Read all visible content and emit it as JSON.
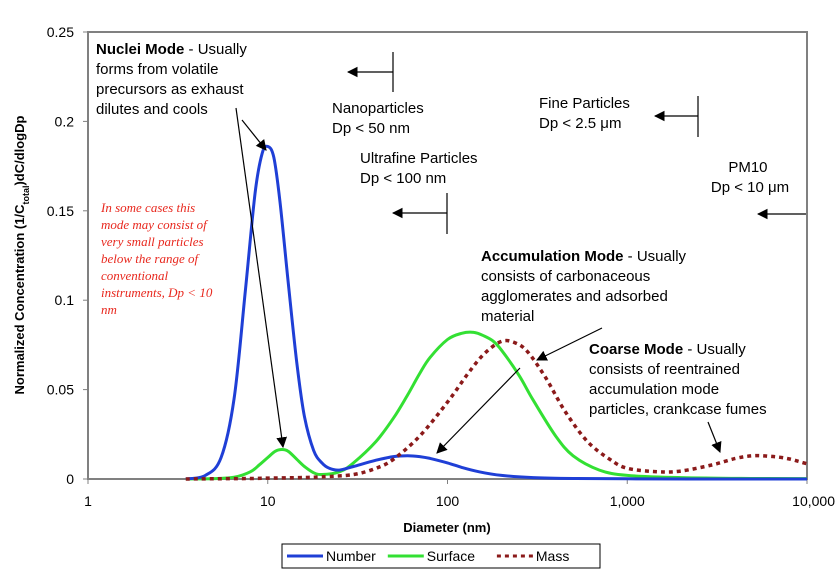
{
  "chart_data": {
    "type": "line",
    "title": "",
    "xlabel": "Diameter (nm)",
    "ylabel": "Normalized Concentration (1/C_total)dC/dlogDp",
    "ylabel_parts": {
      "pre": "Normalized Concentration  (1/C",
      "sub": "total",
      "post": ")dC/dlogDp"
    },
    "x_scale": "log",
    "xlim": [
      1,
      10000
    ],
    "ylim": [
      0,
      0.25
    ],
    "x_ticks": [
      1,
      10,
      100,
      1000,
      10000
    ],
    "x_tick_labels": [
      "1",
      "10",
      "100",
      "1,000",
      "10,000"
    ],
    "y_ticks": [
      0,
      0.05,
      0.1,
      0.15,
      0.2,
      0.25
    ],
    "y_tick_labels": [
      "0",
      "0.05",
      "0.1",
      "0.15",
      "0.2",
      "0.25"
    ],
    "grid": false,
    "legend_position": "bottom",
    "series": [
      {
        "name": "Number",
        "color": "#1f3fd6",
        "style": "solid",
        "x": [
          3.5,
          4.5,
          5.5,
          6.5,
          7.5,
          8.5,
          9.3,
          10,
          10.8,
          11.7,
          13,
          14.5,
          16,
          18,
          20,
          22,
          25,
          30,
          40,
          50,
          60,
          70,
          80,
          100,
          120,
          150,
          200,
          300,
          500,
          1000,
          3000,
          10000
        ],
        "y": [
          0.0,
          0.002,
          0.012,
          0.045,
          0.105,
          0.16,
          0.182,
          0.186,
          0.18,
          0.155,
          0.11,
          0.065,
          0.035,
          0.016,
          0.009,
          0.006,
          0.005,
          0.007,
          0.0105,
          0.0125,
          0.013,
          0.0125,
          0.0115,
          0.009,
          0.0065,
          0.004,
          0.002,
          0.0008,
          0.0003,
          0.0001,
          0.0,
          0.0
        ]
      },
      {
        "name": "Surface",
        "color": "#33e033",
        "style": "solid",
        "x": [
          3.5,
          5,
          6.5,
          8,
          9,
          10,
          11,
          12,
          13,
          14.5,
          16,
          18,
          20,
          25,
          30,
          40,
          50,
          60,
          70,
          80,
          100,
          120,
          140,
          160,
          180,
          200,
          250,
          300,
          400,
          500,
          700,
          1000,
          2000,
          5000,
          10000
        ],
        "y": [
          0.0,
          0.0002,
          0.001,
          0.004,
          0.008,
          0.012,
          0.0155,
          0.0165,
          0.0155,
          0.011,
          0.007,
          0.0035,
          0.0025,
          0.004,
          0.009,
          0.021,
          0.034,
          0.047,
          0.059,
          0.068,
          0.078,
          0.0815,
          0.082,
          0.08,
          0.077,
          0.072,
          0.058,
          0.044,
          0.024,
          0.013,
          0.005,
          0.002,
          0.0008,
          0.0003,
          0.0002
        ]
      },
      {
        "name": "Mass",
        "color": "#8b1a1a",
        "style": "dotted",
        "x": [
          3.5,
          8,
          10,
          15,
          20,
          30,
          40,
          50,
          70,
          100,
          130,
          160,
          200,
          240,
          280,
          350,
          450,
          600,
          800,
          1000,
          1500,
          2000,
          3000,
          4000,
          5000,
          6000,
          7000,
          8000,
          9000,
          10000
        ],
        "y": [
          0.0,
          0.0003,
          0.0005,
          0.0008,
          0.0012,
          0.0025,
          0.006,
          0.011,
          0.024,
          0.043,
          0.059,
          0.07,
          0.077,
          0.076,
          0.071,
          0.057,
          0.038,
          0.021,
          0.011,
          0.006,
          0.004,
          0.0045,
          0.008,
          0.0115,
          0.013,
          0.0128,
          0.0122,
          0.0112,
          0.0098,
          0.0085
        ]
      }
    ]
  },
  "annotations": {
    "nuclei_title": "Nuclei Mode",
    "nuclei_rest": " - Usually",
    "nuclei_l2": "forms from volatile",
    "nuclei_l3": "precursors as exhaust",
    "nuclei_l4": "dilutes and cools",
    "italic_l1": "In some cases this",
    "italic_l2": "mode may consist of",
    "italic_l3": "very small particles",
    "italic_l4": "below the range of",
    "italic_l5": "conventional",
    "italic_l6": "instruments, Dp < 10",
    "italic_l7": "nm",
    "nano_l1": "Nanoparticles",
    "nano_l2": "Dp < 50 nm",
    "ultra_l1": "Ultrafine Particles",
    "ultra_l2": "Dp < 100 nm",
    "fine_l1": "Fine Particles",
    "fine_l2_pre": "Dp < 2.5 ",
    "fine_l2_unit": "μm",
    "pm10_l1": "PM10",
    "pm10_l2_pre": "Dp < 10 ",
    "pm10_l2_unit": "μm",
    "accum_title": "Accumulation Mode",
    "accum_rest": " - Usually",
    "accum_l2": "consists of carbonaceous",
    "accum_l3": "agglomerates and adsorbed",
    "accum_l4": "material",
    "coarse_title": "Coarse Mode",
    "coarse_rest": " - Usually",
    "coarse_l2": "consists of reentrained",
    "coarse_l3": "accumulation mode",
    "coarse_l4": "particles, crankcase fumes"
  }
}
